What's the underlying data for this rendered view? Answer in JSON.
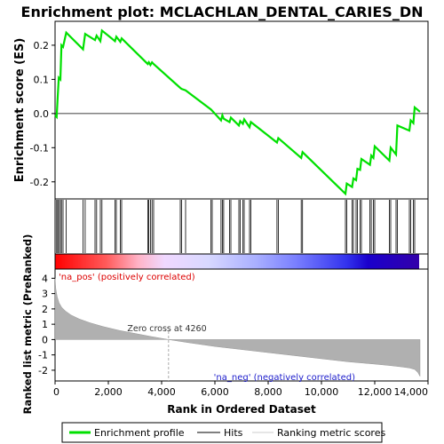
{
  "colors": {
    "enrichment_line": "#00e000",
    "hit_line": "#000000",
    "metric_fill": "#b0b0b0",
    "pos_label": "#dd0000",
    "neg_label": "#2020cc",
    "zero_cross_line": "#aaaaaa"
  },
  "legend": {
    "items": [
      {
        "label": "Enrichment profile",
        "swatch": "green-line"
      },
      {
        "label": "Hits",
        "swatch": "black-line"
      },
      {
        "label": "Ranking metric scores",
        "swatch": "gray-line"
      }
    ]
  },
  "chart_data": [
    {
      "type": "line",
      "title": "Enrichment plot: MCLACHLAN_DENTAL_CARIES_DN",
      "ylabel": "Enrichment score (ES)",
      "xlim": [
        0,
        13700
      ],
      "ylim": [
        -0.25,
        0.27
      ],
      "yticks": [
        0.2,
        0.1,
        0.0,
        -0.1,
        -0.2
      ],
      "ytick_labels": [
        "0.2",
        "0.1",
        "0.0",
        "-0.1",
        "-0.2"
      ],
      "grid": false,
      "series": [
        {
          "name": "Enrichment profile",
          "x": [
            0,
            60,
            100,
            140,
            200,
            240,
            300,
            420,
            1050,
            1130,
            1500,
            1560,
            1700,
            1760,
            2250,
            2300,
            2450,
            2500,
            3480,
            3520,
            3580,
            3640,
            3700,
            4700,
            4750,
            4900,
            5850,
            5900,
            6230,
            6280,
            6330,
            6550,
            6600,
            6900,
            6950,
            7050,
            7100,
            7300,
            7350,
            8330,
            8380,
            9240,
            9290,
            10900,
            10950,
            11150,
            11200,
            11300,
            11350,
            11450,
            11500,
            11820,
            11870,
            11950,
            12000,
            12550,
            12600,
            12800,
            12850,
            13300,
            13350,
            13450,
            13500,
            13700
          ],
          "y": [
            -0.005,
            -0.01,
            0.05,
            0.105,
            0.1,
            0.2,
            0.195,
            0.237,
            0.188,
            0.233,
            0.215,
            0.228,
            0.212,
            0.243,
            0.212,
            0.225,
            0.21,
            0.22,
            0.145,
            0.15,
            0.142,
            0.15,
            0.145,
            0.075,
            0.072,
            0.068,
            0.012,
            0.008,
            -0.02,
            -0.005,
            -0.015,
            -0.025,
            -0.012,
            -0.035,
            -0.022,
            -0.03,
            -0.017,
            -0.04,
            -0.025,
            -0.085,
            -0.072,
            -0.13,
            -0.113,
            -0.235,
            -0.205,
            -0.215,
            -0.19,
            -0.195,
            -0.162,
            -0.165,
            -0.133,
            -0.15,
            -0.123,
            -0.13,
            -0.096,
            -0.138,
            -0.1,
            -0.12,
            -0.035,
            -0.05,
            -0.02,
            -0.028,
            0.018,
            0.005
          ]
        }
      ]
    },
    {
      "type": "scatter",
      "title": "",
      "xlabel": "",
      "ylabel": "",
      "series": [
        {
          "name": "Hits",
          "x": [
            60,
            100,
            140,
            200,
            240,
            300,
            420,
            1050,
            1130,
            1500,
            1560,
            1700,
            1760,
            2250,
            2300,
            2450,
            2500,
            3480,
            3520,
            3580,
            3640,
            3700,
            4700,
            4750,
            4900,
            5850,
            5900,
            6230,
            6280,
            6330,
            6550,
            6600,
            6900,
            6950,
            7050,
            7100,
            7300,
            7350,
            8330,
            8380,
            9240,
            9290,
            10900,
            10950,
            11150,
            11200,
            11300,
            11350,
            11450,
            11500,
            11820,
            11870,
            11950,
            12000,
            12550,
            12600,
            12800,
            12850,
            13300,
            13350,
            13450,
            13500
          ]
        }
      ]
    },
    {
      "type": "area",
      "xlabel": "Rank in Ordered Dataset",
      "ylabel": "Ranked list metric (PreRanked)",
      "xlim": [
        0,
        14000
      ],
      "ylim": [
        -2.7,
        4.6
      ],
      "xticks": [
        0,
        2000,
        4000,
        6000,
        8000,
        10000,
        12000,
        14000
      ],
      "xtick_labels": [
        "0",
        "2,000",
        "4,000",
        "6,000",
        "8,000",
        "10,000",
        "12,000",
        "14,000"
      ],
      "yticks": [
        4,
        3,
        2,
        1,
        0,
        -1,
        -2
      ],
      "ytick_labels": [
        "4",
        "3",
        "2",
        "1",
        "0",
        "-1",
        "-2"
      ],
      "annotations": {
        "pos": "'na_pos' (positively correlated)",
        "neg": "'na_neg' (negatively correlated)",
        "zero_cross": "Zero cross at 4260"
      },
      "zero_cross_x": 4260,
      "series": [
        {
          "name": "Ranking metric scores",
          "x": [
            0,
            30,
            80,
            150,
            250,
            400,
            600,
            900,
            1300,
            1800,
            2400,
            3000,
            3600,
            4260,
            5000,
            6000,
            7000,
            8000,
            9000,
            10000,
            11000,
            12000,
            12600,
            13000,
            13300,
            13500,
            13620,
            13700
          ],
          "y": [
            4.0,
            3.3,
            2.8,
            2.4,
            2.1,
            1.85,
            1.6,
            1.35,
            1.1,
            0.85,
            0.6,
            0.4,
            0.2,
            0.0,
            -0.2,
            -0.45,
            -0.65,
            -0.85,
            -1.05,
            -1.25,
            -1.45,
            -1.6,
            -1.7,
            -1.78,
            -1.85,
            -1.95,
            -2.15,
            -2.4
          ]
        }
      ]
    }
  ]
}
